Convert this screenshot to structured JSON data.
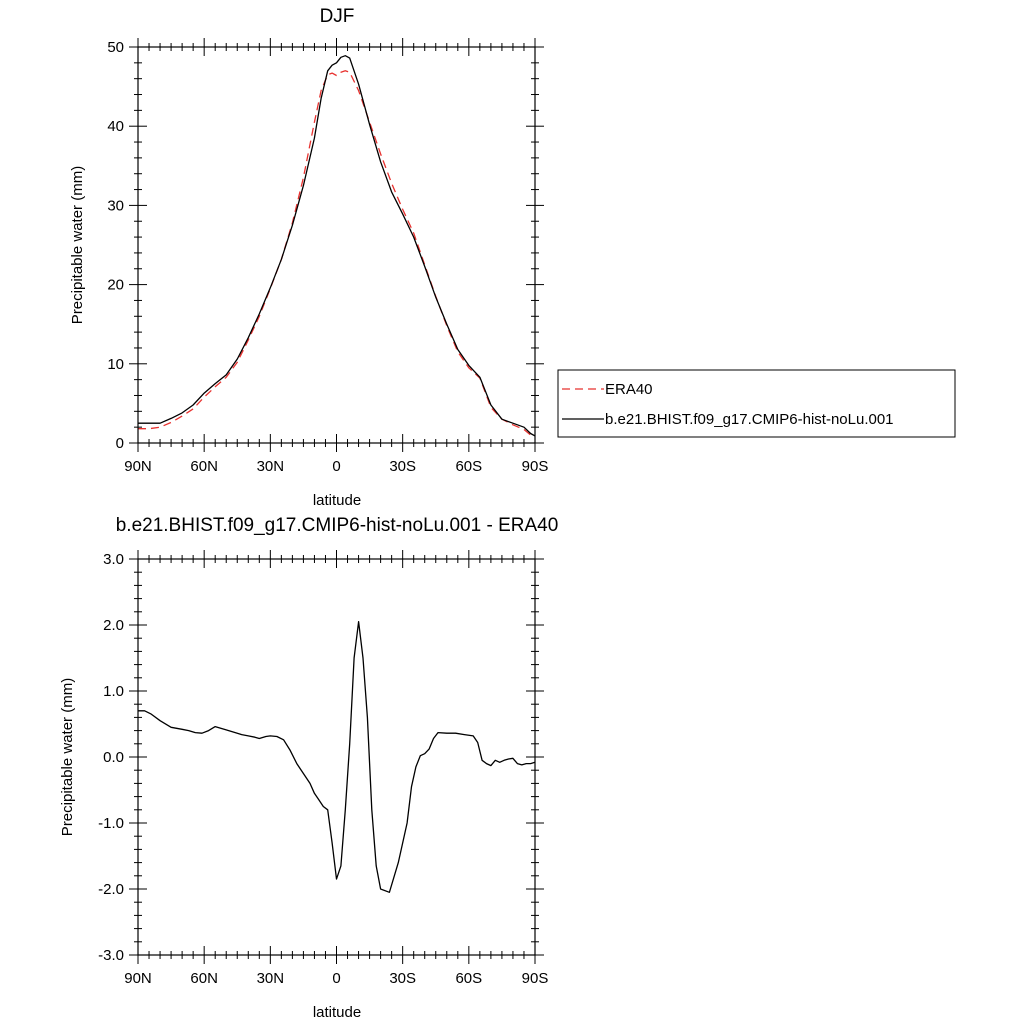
{
  "colors": {
    "obs": "#e8322f",
    "model": "#000000",
    "frame": "#000000",
    "background": "#ffffff"
  },
  "chart_data": [
    {
      "type": "line",
      "title": "DJF",
      "xlabel": "latitude",
      "ylabel": "Precipitable water (mm)",
      "xlim": [
        90,
        -90
      ],
      "ylim": [
        0,
        50
      ],
      "xticks": [
        90,
        60,
        30,
        0,
        -30,
        -60,
        -90
      ],
      "xtick_labels": [
        "90N",
        "60N",
        "30N",
        "0",
        "30S",
        "60S",
        "90S"
      ],
      "yticks": [
        0,
        10,
        20,
        30,
        40,
        50
      ],
      "ytick_labels": [
        "0",
        "10",
        "20",
        "30",
        "40",
        "50"
      ],
      "grid": false,
      "legend_position": "right",
      "series": [
        {
          "name": "ERA40",
          "color": "#e8322f",
          "dash": "dashed",
          "x": [
            90,
            85,
            80,
            75,
            70,
            65,
            60,
            55,
            50,
            45,
            40,
            35,
            30,
            25,
            20,
            15,
            10,
            7,
            4,
            2,
            0,
            -2,
            -4,
            -6,
            -10,
            -15,
            -20,
            -25,
            -30,
            -35,
            -40,
            -45,
            -50,
            -55,
            -60,
            -65,
            -70,
            -75,
            -80,
            -85,
            -88,
            -90
          ],
          "y": [
            1.8,
            1.8,
            2.0,
            2.6,
            3.4,
            4.3,
            5.8,
            7.1,
            8.3,
            10.2,
            13.0,
            16.0,
            19.5,
            23.2,
            27.8,
            33.5,
            40.5,
            44.5,
            46.5,
            46.7,
            46.4,
            46.8,
            47.0,
            46.8,
            44.5,
            40.5,
            36.5,
            32.8,
            29.5,
            26.5,
            22.5,
            18.5,
            14.8,
            11.5,
            9.5,
            8.2,
            4.5,
            3.0,
            2.3,
            1.7,
            1.0,
            0.8
          ]
        },
        {
          "name": "b.e21.BHIST.f09_g17.CMIP6-hist-noLu.001",
          "color": "#000000",
          "dash": "solid",
          "x": [
            90,
            85,
            80,
            75,
            70,
            65,
            60,
            55,
            50,
            45,
            40,
            35,
            30,
            25,
            20,
            15,
            10,
            7,
            4,
            2,
            0,
            -2,
            -4,
            -6,
            -10,
            -15,
            -20,
            -25,
            -30,
            -35,
            -40,
            -45,
            -50,
            -55,
            -60,
            -65,
            -70,
            -75,
            -80,
            -85,
            -88,
            -90
          ],
          "y": [
            2.5,
            2.5,
            2.5,
            3.1,
            3.8,
            4.8,
            6.3,
            7.5,
            8.6,
            10.6,
            13.3,
            16.3,
            19.6,
            23.2,
            27.5,
            32.5,
            38.5,
            43.5,
            47.0,
            47.7,
            48.0,
            48.7,
            48.9,
            48.6,
            45.3,
            40.2,
            35.5,
            31.7,
            28.9,
            26.0,
            22.3,
            18.4,
            15.0,
            11.8,
            9.8,
            8.3,
            4.8,
            3.0,
            2.5,
            2.0,
            1.2,
            0.9
          ]
        }
      ]
    },
    {
      "type": "line",
      "title": "b.e21.BHIST.f09_g17.CMIP6-hist-noLu.001 - ERA40",
      "xlabel": "latitude",
      "ylabel": "Precipitable water (mm)",
      "xlim": [
        90,
        -90
      ],
      "ylim": [
        -3.0,
        3.0
      ],
      "xticks": [
        90,
        60,
        30,
        0,
        -30,
        -60,
        -90
      ],
      "xtick_labels": [
        "90N",
        "60N",
        "30N",
        "0",
        "30S",
        "60S",
        "90S"
      ],
      "yticks": [
        -3,
        -2,
        -1,
        0,
        1,
        2,
        3
      ],
      "ytick_labels": [
        "-3.0",
        "-2.0",
        "-1.0",
        "0.0",
        "1.0",
        "2.0",
        "3.0"
      ],
      "grid": false,
      "series": [
        {
          "color": "#000000",
          "dash": "solid",
          "x": [
            90,
            87,
            84,
            80,
            75,
            70,
            67,
            64,
            61,
            58,
            55,
            50,
            45,
            43,
            40,
            37,
            35,
            32,
            30,
            27,
            24,
            21,
            18,
            15,
            12,
            10,
            8,
            6,
            4,
            2,
            0,
            -2,
            -4,
            -6,
            -8,
            -10,
            -12,
            -14,
            -16,
            -18,
            -20,
            -24,
            -28,
            -32,
            -34,
            -36,
            -38,
            -40,
            -42,
            -44,
            -46,
            -50,
            -54,
            -58,
            -62,
            -64,
            -66,
            -68,
            -70,
            -72,
            -74,
            -76,
            -78,
            -80,
            -82,
            -84,
            -86,
            -88,
            -90
          ],
          "y": [
            0.7,
            0.7,
            0.65,
            0.55,
            0.45,
            0.42,
            0.4,
            0.37,
            0.36,
            0.4,
            0.46,
            0.41,
            0.36,
            0.34,
            0.32,
            0.3,
            0.28,
            0.31,
            0.32,
            0.31,
            0.26,
            0.1,
            -0.1,
            -0.25,
            -0.4,
            -0.55,
            -0.65,
            -0.75,
            -0.8,
            -1.3,
            -1.85,
            -1.65,
            -0.8,
            0.2,
            1.5,
            2.05,
            1.5,
            0.6,
            -0.8,
            -1.65,
            -2.0,
            -2.05,
            -1.6,
            -1.0,
            -0.45,
            -0.15,
            0.02,
            0.05,
            0.12,
            0.28,
            0.37,
            0.36,
            0.36,
            0.34,
            0.32,
            0.22,
            -0.05,
            -0.1,
            -0.13,
            -0.05,
            -0.08,
            -0.05,
            -0.03,
            -0.02,
            -0.1,
            -0.12,
            -0.1,
            -0.1,
            -0.08
          ]
        }
      ]
    }
  ]
}
